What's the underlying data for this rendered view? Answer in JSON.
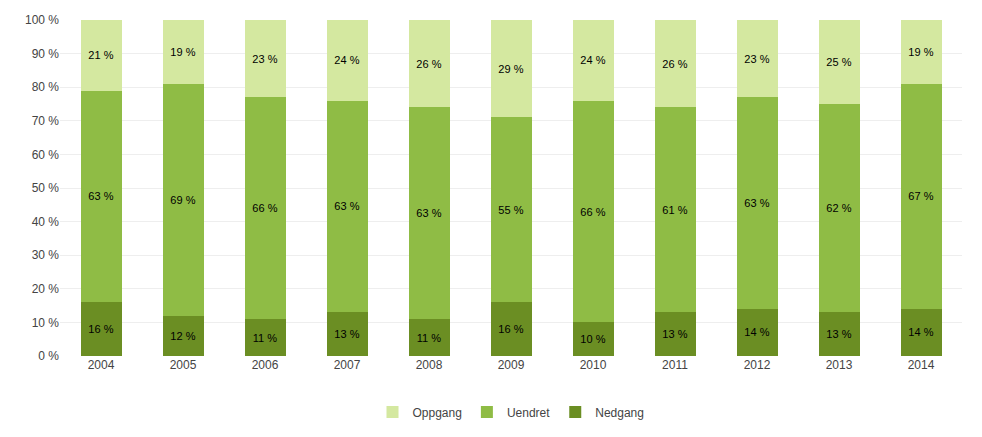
{
  "chart_data": {
    "type": "bar",
    "stacked": true,
    "categories": [
      "2004",
      "2005",
      "2006",
      "2007",
      "2008",
      "2009",
      "2010",
      "2011",
      "2012",
      "2013",
      "2014"
    ],
    "series": [
      {
        "name": "Nedgang",
        "color": "#6b8e23",
        "values": [
          16,
          12,
          11,
          13,
          11,
          16,
          10,
          13,
          14,
          13,
          14
        ],
        "value_labels": [
          "16 %",
          "12 %",
          "11 %",
          "13 %",
          "11 %",
          "16 %",
          "10 %",
          "13 %",
          "14 %",
          "13 %",
          "14 %"
        ]
      },
      {
        "name": "Uendret",
        "color": "#8fbc45",
        "values": [
          63,
          69,
          66,
          63,
          63,
          55,
          66,
          61,
          63,
          62,
          67
        ],
        "value_labels": [
          "63 %",
          "69 %",
          "66 %",
          "63 %",
          "63 %",
          "55 %",
          "66 %",
          "61 %",
          "63 %",
          "62 %",
          "67 %"
        ]
      },
      {
        "name": "Oppgang",
        "color": "#d4e8a0",
        "values": [
          21,
          19,
          23,
          24,
          26,
          29,
          24,
          26,
          23,
          25,
          19
        ],
        "value_labels": [
          "21 %",
          "19 %",
          "23 %",
          "24 %",
          "26 %",
          "29 %",
          "24 %",
          "26 %",
          "23 %",
          "25 %",
          "19 %"
        ]
      }
    ],
    "ylim": [
      0,
      100
    ],
    "yticks": [
      {
        "value": 0,
        "label": "0 %"
      },
      {
        "value": 10,
        "label": "10 %"
      },
      {
        "value": 20,
        "label": "20 %"
      },
      {
        "value": 30,
        "label": "30 %"
      },
      {
        "value": 40,
        "label": "40 %"
      },
      {
        "value": 50,
        "label": "50 %"
      },
      {
        "value": 60,
        "label": "60 %"
      },
      {
        "value": 70,
        "label": "70 %"
      },
      {
        "value": 80,
        "label": "80 %"
      },
      {
        "value": 90,
        "label": "90 %"
      },
      {
        "value": 100,
        "label": "100 %"
      }
    ],
    "grid": true,
    "legend": "bottom",
    "data_labels": true
  }
}
